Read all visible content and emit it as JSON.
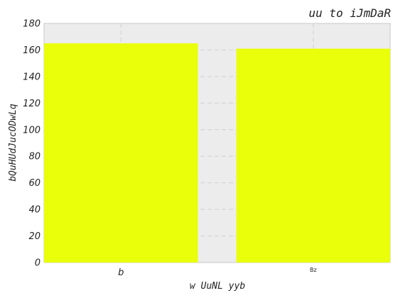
{
  "chart_data": {
    "type": "bar",
    "title": "uu to iJmDaR",
    "xlabel": "w UuNL yyb",
    "ylabel": "bQuHUdJucODwLq",
    "categories": [
      "b",
      "Bz"
    ],
    "values": [
      165,
      161
    ],
    "ylim": [
      0,
      180
    ],
    "yticks": [
      0,
      20,
      40,
      60,
      80,
      100,
      120,
      140,
      160,
      180
    ],
    "grid": true,
    "bar_color": "#eaff0a",
    "plot_background": "#ececec"
  }
}
